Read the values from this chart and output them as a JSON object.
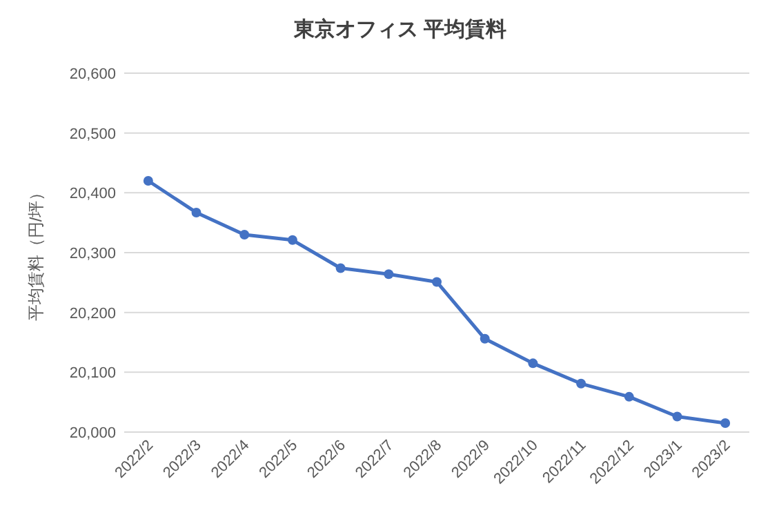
{
  "chart_data": {
    "type": "line",
    "title": "東京オフィス 平均賃料",
    "ylabel": "平均賃料（円/坪）",
    "categories": [
      "2022/2",
      "2022/3",
      "2022/4",
      "2022/5",
      "2022/6",
      "2022/7",
      "2022/8",
      "2022/9",
      "2022/10",
      "2022/11",
      "2022/12",
      "2023/1",
      "2023/2"
    ],
    "series": [
      {
        "color": "#4472c4",
        "values": [
          20420,
          20367,
          20330,
          20321,
          20274,
          20264,
          20251,
          20156,
          20115,
          20081,
          20059,
          20026,
          20015
        ]
      }
    ],
    "ylim": [
      20000,
      20600
    ],
    "yticks": [
      {
        "value": 20000,
        "label": "20,000"
      },
      {
        "value": 20100,
        "label": "20,100"
      },
      {
        "value": 20200,
        "label": "20,200"
      },
      {
        "value": 20300,
        "label": "20,300"
      },
      {
        "value": 20400,
        "label": "20,400"
      },
      {
        "value": 20500,
        "label": "20,500"
      },
      {
        "value": 20600,
        "label": "20,600"
      }
    ],
    "grid": "y",
    "marker": "circle",
    "line_style": "solid"
  }
}
